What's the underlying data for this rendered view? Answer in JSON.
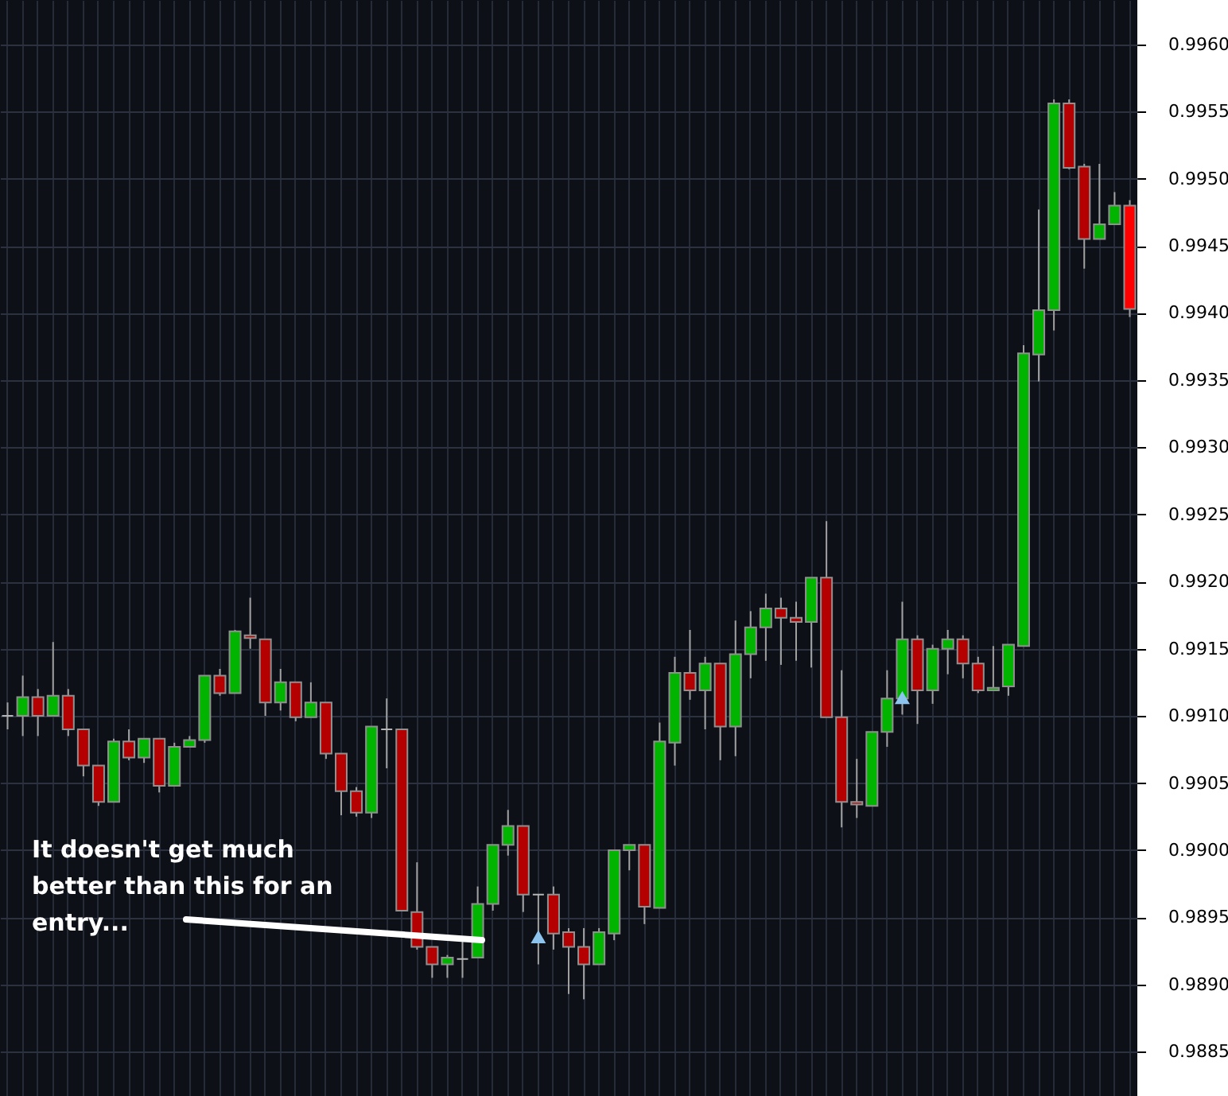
{
  "chart_data": {
    "type": "candlestick",
    "categories": [
      null,
      null,
      null,
      null,
      null,
      null,
      null,
      null,
      null,
      null,
      null,
      null,
      null,
      null,
      null,
      null,
      null,
      null,
      null,
      null,
      null,
      null,
      null,
      null,
      null,
      null,
      null,
      null,
      null,
      null,
      null,
      null,
      null,
      null,
      null,
      null,
      null,
      null,
      null,
      null,
      null,
      null,
      null,
      null,
      null,
      null,
      null,
      null,
      null,
      null,
      null,
      null,
      null,
      null,
      null,
      null,
      null,
      null,
      null,
      null,
      null,
      null,
      null,
      null,
      null,
      null,
      null,
      null,
      null,
      null,
      null,
      null,
      null,
      null,
      null
    ],
    "ohlc": [
      [
        0.991,
        0.9911,
        0.9909,
        0.991
      ],
      [
        0.991,
        0.9913,
        0.99085,
        0.99114
      ],
      [
        0.99114,
        0.9912,
        0.99085,
        0.991
      ],
      [
        0.991,
        0.99155,
        0.991,
        0.99115
      ],
      [
        0.99115,
        0.9912,
        0.99085,
        0.9909
      ],
      [
        0.9909,
        0.9909,
        0.99055,
        0.99063
      ],
      [
        0.99063,
        0.99063,
        0.99033,
        0.99036
      ],
      [
        0.99036,
        0.99083,
        0.99036,
        0.99081
      ],
      [
        0.99081,
        0.9909,
        0.99067,
        0.99069
      ],
      [
        0.99069,
        0.99083,
        0.99065,
        0.99083
      ],
      [
        0.99083,
        0.99083,
        0.99043,
        0.99048
      ],
      [
        0.99048,
        0.9908,
        0.99048,
        0.99077
      ],
      [
        0.99077,
        0.99085,
        0.99077,
        0.99082
      ],
      [
        0.99082,
        0.9913,
        0.9908,
        0.9913
      ],
      [
        0.9913,
        0.99135,
        0.99115,
        0.99117
      ],
      [
        0.99117,
        0.99164,
        0.99117,
        0.99163
      ],
      [
        0.9916,
        0.99188,
        0.9915,
        0.99158
      ],
      [
        0.99157,
        0.99157,
        0.991,
        0.9911
      ],
      [
        0.9911,
        0.99135,
        0.99104,
        0.99125
      ],
      [
        0.99125,
        0.99125,
        0.99096,
        0.99099
      ],
      [
        0.99099,
        0.99125,
        0.99099,
        0.9911
      ],
      [
        0.9911,
        0.9911,
        0.99068,
        0.99072
      ],
      [
        0.99072,
        0.99072,
        0.99026,
        0.99044
      ],
      [
        0.99044,
        0.99047,
        0.99025,
        0.99028
      ],
      [
        0.99028,
        0.99092,
        0.99024,
        0.99092
      ],
      [
        0.9909,
        0.99113,
        0.99061,
        0.9909
      ],
      [
        0.9909,
        0.9909,
        0.98955,
        0.98955
      ],
      [
        0.98954,
        0.98991,
        0.98926,
        0.98928
      ],
      [
        0.98928,
        0.98928,
        0.98905,
        0.98915
      ],
      [
        0.98915,
        0.98922,
        0.98905,
        0.9892
      ],
      [
        0.98919,
        0.98932,
        0.98905,
        0.98919
      ],
      [
        0.9892,
        0.98973,
        0.9892,
        0.9896
      ],
      [
        0.9896,
        0.99004,
        0.98955,
        0.99004
      ],
      [
        0.99004,
        0.9903,
        0.98996,
        0.99018
      ],
      [
        0.99018,
        0.99018,
        0.98954,
        0.98967
      ],
      [
        0.98967,
        0.98967,
        0.98915,
        0.98967
      ],
      [
        0.98967,
        0.98973,
        0.98926,
        0.98938
      ],
      [
        0.98939,
        0.98942,
        0.98893,
        0.98928
      ],
      [
        0.98928,
        0.98942,
        0.98889,
        0.98915
      ],
      [
        0.98915,
        0.98942,
        0.98915,
        0.98939
      ],
      [
        0.98938,
        0.99,
        0.98933,
        0.99
      ],
      [
        0.99,
        0.99004,
        0.98985,
        0.99004
      ],
      [
        0.99004,
        0.99004,
        0.98945,
        0.98958
      ],
      [
        0.98957,
        0.99095,
        0.98957,
        0.99081
      ],
      [
        0.9908,
        0.99144,
        0.99063,
        0.99132
      ],
      [
        0.99132,
        0.99164,
        0.99112,
        0.99119
      ],
      [
        0.99119,
        0.99144,
        0.9909,
        0.99139
      ],
      [
        0.99139,
        0.99139,
        0.99067,
        0.99092
      ],
      [
        0.99092,
        0.99171,
        0.9907,
        0.99146
      ],
      [
        0.99146,
        0.99178,
        0.99128,
        0.99166
      ],
      [
        0.99166,
        0.99191,
        0.99141,
        0.9918
      ],
      [
        0.9918,
        0.99188,
        0.99138,
        0.99173
      ],
      [
        0.99173,
        0.99185,
        0.99141,
        0.9917
      ],
      [
        0.9917,
        0.99203,
        0.99136,
        0.99203
      ],
      [
        0.99203,
        0.99245,
        0.99099,
        0.99099
      ],
      [
        0.99099,
        0.99134,
        0.99017,
        0.99036
      ],
      [
        0.99036,
        0.99068,
        0.99024,
        0.99034
      ],
      [
        0.99033,
        0.99088,
        0.99033,
        0.99088
      ],
      [
        0.99088,
        0.99134,
        0.99077,
        0.99113
      ],
      [
        0.99113,
        0.99185,
        0.99101,
        0.99157
      ],
      [
        0.99157,
        0.9916,
        0.99094,
        0.99119
      ],
      [
        0.99119,
        0.99153,
        0.99109,
        0.9915
      ],
      [
        0.9915,
        0.99164,
        0.99131,
        0.99157
      ],
      [
        0.99157,
        0.9916,
        0.99128,
        0.99139
      ],
      [
        0.99139,
        0.99144,
        0.99117,
        0.99119
      ],
      [
        0.99119,
        0.99152,
        0.99119,
        0.99121
      ],
      [
        0.99122,
        0.99153,
        0.99115,
        0.99153
      ],
      [
        0.99152,
        0.99376,
        0.99152,
        0.9937
      ],
      [
        0.99369,
        0.99477,
        0.99349,
        0.99402
      ],
      [
        0.99402,
        0.99559,
        0.99387,
        0.99556
      ],
      [
        0.99556,
        0.99559,
        0.99507,
        0.99508
      ],
      [
        0.99509,
        0.99511,
        0.99433,
        0.99455
      ],
      [
        0.99455,
        0.99511,
        0.99455,
        0.99466
      ],
      [
        0.99466,
        0.9949,
        0.99466,
        0.9948
      ],
      [
        0.9948,
        0.99484,
        0.99397,
        0.99403
      ]
    ],
    "colors": [
      "#b4b4b4",
      "#00b400",
      "#b40000",
      "#00b400",
      "#b40000",
      "#b40000",
      "#b40000",
      "#00b400",
      "#b40000",
      "#00b400",
      "#b40000",
      "#00b400",
      "#00b400",
      "#00b400",
      "#b40000",
      "#00b400",
      "#b40000",
      "#b40000",
      "#00b400",
      "#b40000",
      "#00b400",
      "#b40000",
      "#b40000",
      "#b40000",
      "#00b400",
      "#b4b4b4",
      "#b40000",
      "#b40000",
      "#b40000",
      "#00b400",
      "#b4b4b4",
      "#00b400",
      "#00b400",
      "#00b400",
      "#b40000",
      "#b4b4b4",
      "#b40000",
      "#b40000",
      "#b40000",
      "#00b400",
      "#00b400",
      "#00b400",
      "#b40000",
      "#00b400",
      "#00b400",
      "#b40000",
      "#00b400",
      "#b40000",
      "#00b400",
      "#00b400",
      "#00b400",
      "#b40000",
      "#b40000",
      "#00b400",
      "#b40000",
      "#b40000",
      "#b40000",
      "#00b400",
      "#00b400",
      "#00b400",
      "#b40000",
      "#00b400",
      "#00b400",
      "#b40000",
      "#b40000",
      "#00b400",
      "#00b400",
      "#00b400",
      "#00b400",
      "#00b400",
      "#b40000",
      "#b40000",
      "#00b400",
      "#00b400",
      "#ff0000"
    ],
    "series": [
      {
        "type": "scatter",
        "marker": "triangle",
        "color": "#8cc4ee",
        "values": [
          null,
          null,
          null,
          null,
          null,
          null,
          null,
          null,
          null,
          null,
          null,
          null,
          null,
          null,
          null,
          null,
          null,
          null,
          null,
          null,
          null,
          null,
          null,
          null,
          null,
          null,
          null,
          null,
          null,
          null,
          null,
          null,
          null,
          null,
          null,
          0.98934,
          null,
          null,
          null,
          null,
          null,
          null,
          null,
          null,
          null,
          null,
          null,
          null,
          null,
          null,
          null,
          null,
          null,
          null,
          null,
          null,
          null,
          null,
          null,
          0.99112,
          null,
          null,
          null,
          null,
          null,
          null,
          null,
          null,
          null,
          null,
          null,
          null,
          null,
          null,
          null
        ]
      }
    ],
    "ylim": [
      0.98817,
      0.99633
    ],
    "yticks": [
      {
        "value": 0.9885,
        "label": "0.9885"
      },
      {
        "value": 0.989,
        "label": "0.9890"
      },
      {
        "value": 0.9895,
        "label": "0.9895"
      },
      {
        "value": 0.99,
        "label": "0.9900"
      },
      {
        "value": 0.9905,
        "label": "0.9905"
      },
      {
        "value": 0.991,
        "label": "0.9910"
      },
      {
        "value": 0.9915,
        "label": "0.9915"
      },
      {
        "value": 0.992,
        "label": "0.9920"
      },
      {
        "value": 0.9925,
        "label": "0.9925"
      },
      {
        "value": 0.993,
        "label": "0.9930"
      },
      {
        "value": 0.9935,
        "label": "0.9935"
      },
      {
        "value": 0.994,
        "label": "0.9940"
      },
      {
        "value": 0.9945,
        "label": "0.9945"
      },
      {
        "value": 0.995,
        "label": "0.9950"
      },
      {
        "value": 0.9955,
        "label": "0.9955"
      },
      {
        "value": 0.996,
        "label": "0.9960"
      }
    ],
    "grid": true,
    "tick_labels": "y",
    "annotations": [
      "It doesn't get much better than this for an entry..."
    ]
  }
}
